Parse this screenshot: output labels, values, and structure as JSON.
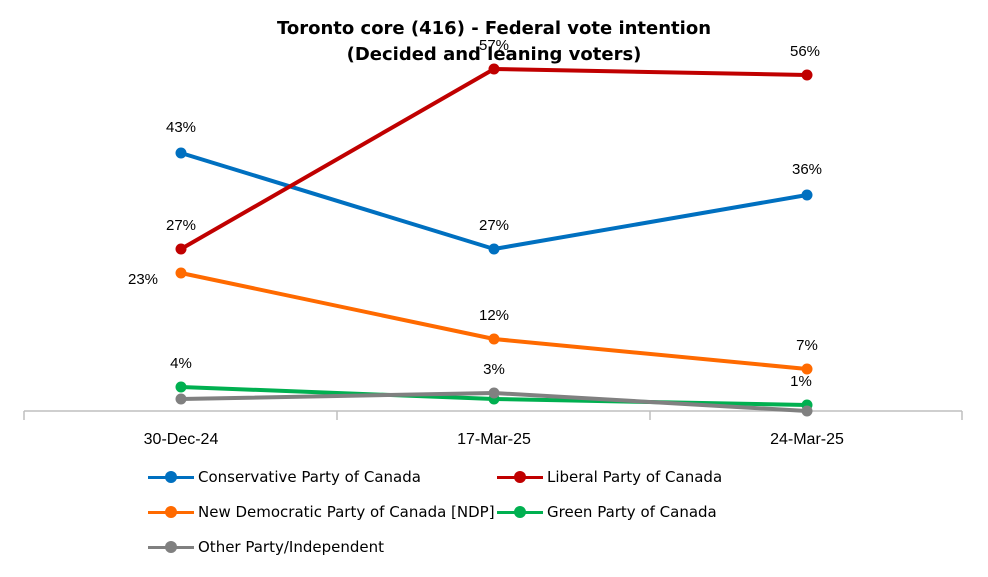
{
  "chart_data": {
    "type": "line",
    "title": "Toronto core (416) - Federal vote intention",
    "subtitle": "(Decided and leaning voters)",
    "categories": [
      "30-Dec-24",
      "17-Mar-25",
      "24-Mar-25"
    ],
    "ylim": [
      0,
      60
    ],
    "grid": false,
    "legend_position": "bottom",
    "series": [
      {
        "name": "Conservative Party of Canada",
        "color": "#0070C0",
        "values": [
          43,
          27,
          36
        ],
        "labels": [
          "43%",
          "27%",
          "36%"
        ]
      },
      {
        "name": "Liberal Party of Canada",
        "color": "#C00000",
        "values": [
          27,
          57,
          56
        ],
        "labels": [
          "27%",
          "57%",
          "56%"
        ]
      },
      {
        "name": "New Democratic Party of Canada [NDP]",
        "color": "#FF6A00",
        "values": [
          23,
          12,
          7
        ],
        "labels": [
          "23%",
          "12%",
          "7%"
        ]
      },
      {
        "name": "Green Party of Canada",
        "color": "#00B050",
        "values": [
          4,
          2,
          1
        ],
        "labels": [
          "4%",
          "",
          "1%"
        ]
      },
      {
        "name": "Other Party/Independent",
        "color": "#808080",
        "values": [
          2,
          3,
          0
        ],
        "labels": [
          "",
          "3%",
          ""
        ]
      }
    ]
  }
}
